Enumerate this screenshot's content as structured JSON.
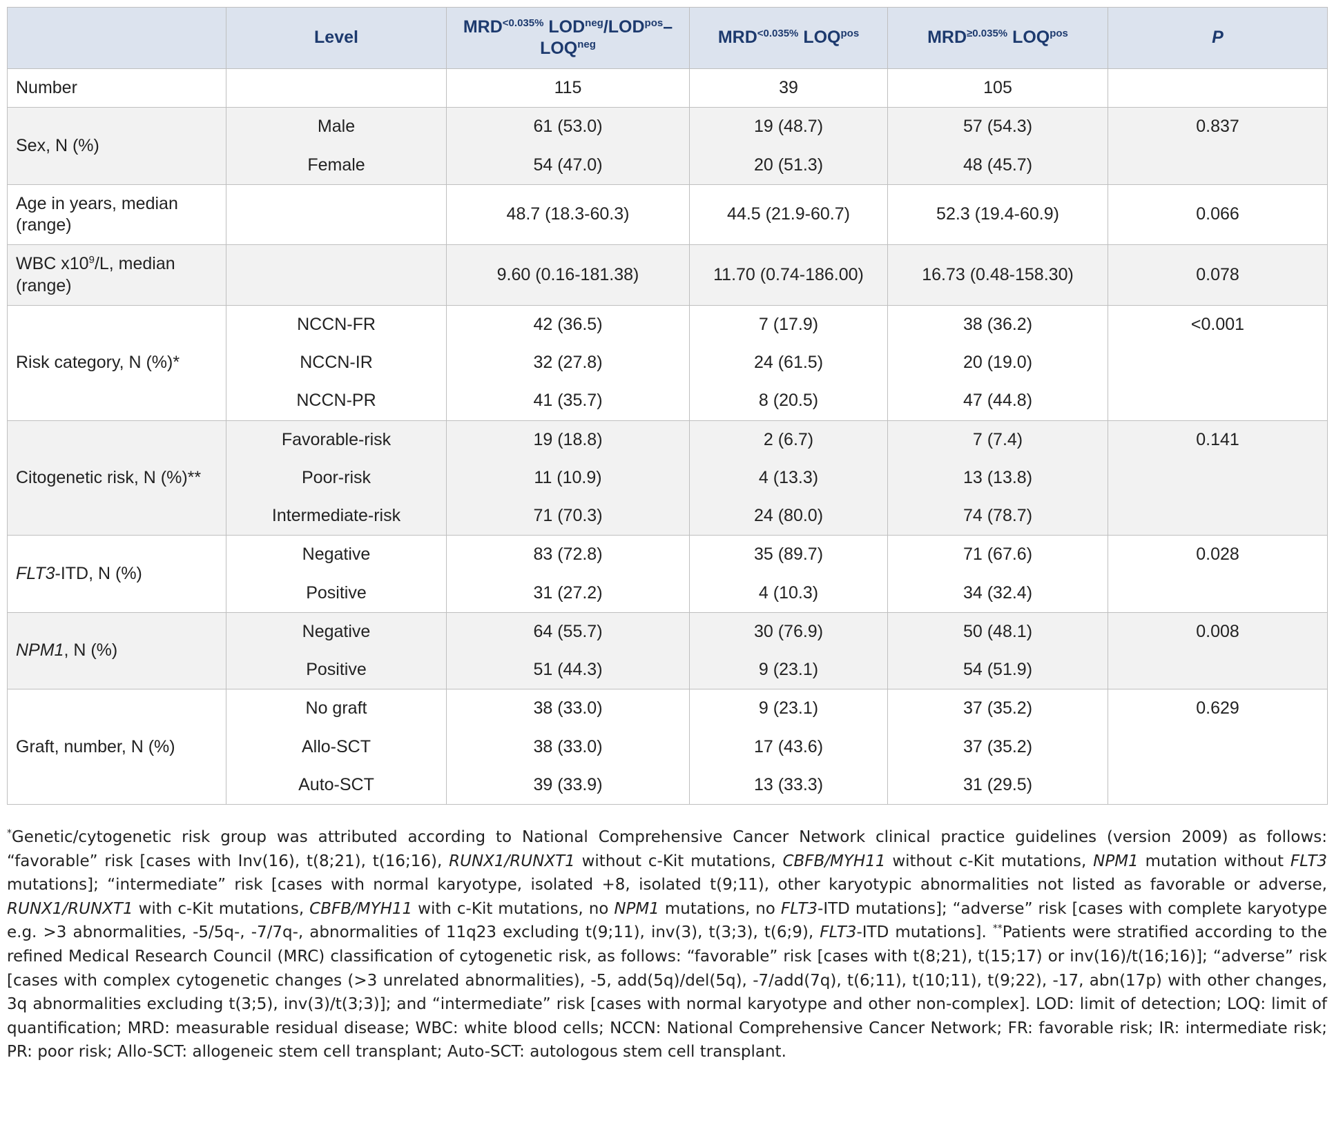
{
  "table": {
    "header": [
      "Level",
      [
        "MRD",
        {
          "text": "<0.035%",
          "style": "sup"
        },
        " LOD",
        {
          "text": "neg",
          "style": "sup"
        },
        "/LOD",
        {
          "text": "pos",
          "style": "sup"
        },
        "–LOQ",
        {
          "text": "neg",
          "style": "sup"
        }
      ],
      [
        "MRD",
        {
          "text": "<0.035%",
          "style": "sup"
        },
        " LOQ",
        {
          "text": "pos",
          "style": "sup"
        }
      ],
      [
        "MRD",
        {
          "text": "≥0.035%",
          "style": "sup"
        },
        " LOQ",
        {
          "text": "pos",
          "style": "sup"
        }
      ],
      [
        {
          "text": "P",
          "style": "italic"
        }
      ]
    ],
    "groups": [
      {
        "label": "Number",
        "rows": [
          {
            "values": [
              "115",
              "39",
              "105"
            ]
          }
        ]
      },
      {
        "label": "Sex, N (%)",
        "rows": [
          {
            "level": "Male",
            "values": [
              "61 (53.0)",
              "19 (48.7)",
              "57 (54.3)"
            ],
            "p": "0.837"
          },
          {
            "level": "Female",
            "values": [
              "54 (47.0)",
              "20 (51.3)",
              "48 (45.7)"
            ]
          }
        ]
      },
      {
        "label": "Age in years, median (range)",
        "rows": [
          {
            "values": [
              "48.7 (18.3-60.3)",
              "44.5 (21.9-60.7)",
              "52.3 (19.4-60.9)"
            ],
            "p": "0.066"
          }
        ]
      },
      {
        "label": [
          "WBC x10",
          {
            "text": "9",
            "style": "sup"
          },
          "/L, median (range)"
        ],
        "rows": [
          {
            "values": [
              "9.60 (0.16-181.38)",
              "11.70 (0.74-186.00)",
              "16.73 (0.48-158.30)"
            ],
            "p": "0.078"
          }
        ]
      },
      {
        "label": "Risk category, N (%)*",
        "rows": [
          {
            "level": "NCCN-FR",
            "values": [
              "42 (36.5)",
              "7 (17.9)",
              "38 (36.2)"
            ],
            "p": "<0.001"
          },
          {
            "level": "NCCN-IR",
            "values": [
              "32 (27.8)",
              "24 (61.5)",
              "20 (19.0)"
            ]
          },
          {
            "level": "NCCN-PR",
            "values": [
              "41 (35.7)",
              "8 (20.5)",
              "47 (44.8)"
            ]
          }
        ]
      },
      {
        "label": "Citogenetic risk, N (%)**",
        "rows": [
          {
            "level": "Favorable-risk",
            "values": [
              "19 (18.8)",
              "2 (6.7)",
              "7 (7.4)"
            ],
            "p": "0.141"
          },
          {
            "level": "Poor-risk",
            "values": [
              "11 (10.9)",
              "4 (13.3)",
              "13 (13.8)"
            ]
          },
          {
            "level": "Intermediate-risk",
            "values": [
              "71 (70.3)",
              "24 (80.0)",
              "74 (78.7)"
            ]
          }
        ]
      },
      {
        "label": [
          {
            "text": "FLT3",
            "style": "italic"
          },
          "-ITD, N (%)"
        ],
        "rows": [
          {
            "level": "Negative",
            "values": [
              "83 (72.8)",
              "35 (89.7)",
              "71 (67.6)"
            ],
            "p": "0.028"
          },
          {
            "level": "Positive",
            "values": [
              "31 (27.2)",
              "4 (10.3)",
              "34 (32.4)"
            ]
          }
        ]
      },
      {
        "label": [
          {
            "text": "NPM1",
            "style": "italic"
          },
          ", N (%)"
        ],
        "rows": [
          {
            "level": "Negative",
            "values": [
              "64 (55.7)",
              "30 (76.9)",
              "50 (48.1)"
            ],
            "p": "0.008"
          },
          {
            "level": "Positive",
            "values": [
              "51 (44.3)",
              "9 (23.1)",
              "54 (51.9)"
            ]
          }
        ]
      },
      {
        "label": "Graft, number, N (%)",
        "rows": [
          {
            "level": "No graft",
            "values": [
              "38 (33.0)",
              "9 (23.1)",
              "37 (35.2)"
            ],
            "p": "0.629"
          },
          {
            "level": "Allo-SCT",
            "values": [
              "38 (33.0)",
              "17 (43.6)",
              "37 (35.2)"
            ]
          },
          {
            "level": "Auto-SCT",
            "values": [
              "39 (33.9)",
              "13 (33.3)",
              "31 (29.5)"
            ]
          }
        ]
      }
    ]
  },
  "footnote": [
    {
      "text": "*",
      "style": "sup"
    },
    "Genetic/cytogenetic risk group was attributed according to National Comprehensive Cancer Network clinical practice guidelines (version 2009) as follows: “favorable” risk [cases with Inv(16), t(8;21), t(16;16), ",
    {
      "text": "RUNX1/RUNXT1",
      "style": "italic"
    },
    " without c-Kit mutations, ",
    {
      "text": "CBFB/MYH11",
      "style": "italic"
    },
    " without c-Kit mutations, ",
    {
      "text": "NPM1",
      "style": "italic"
    },
    " mutation without ",
    {
      "text": "FLT3",
      "style": "italic"
    },
    " mutations]; “intermediate” risk [cases with normal karyotype, isolated +8, isolated t(9;11), other karyotypic abnormalities not listed as favorable or adverse, ",
    {
      "text": "RUNX1/RUNXT1",
      "style": "italic"
    },
    " with c-Kit mutations, ",
    {
      "text": "CBFB/MYH11",
      "style": "italic"
    },
    " with c-Kit mutations, no ",
    {
      "text": "NPM1",
      "style": "italic"
    },
    " mutations, no ",
    {
      "text": "FLT3",
      "style": "italic"
    },
    "-ITD mutations]; “adverse” risk [cases with complete karyotype e.g. >3 abnormalities, -5/5q-, -7/7q-, abnormalities of 11q23 excluding t(9;11), inv(3), t(3;3), t(6;9), ",
    {
      "text": "FLT3",
      "style": "italic"
    },
    "-ITD mutations]. ",
    {
      "text": "**",
      "style": "sup"
    },
    "Patients were stratified according to the refined Medical Research Council (MRC) classification of cytogenetic risk, as follows: “favorable” risk [cases with t(8;21), t(15;17) or inv(16)/t(16;16)]; “adverse” risk [cases with complex cytogenetic changes (>3 unrelated abnormalities), -5, add(5q)/del(5q), -7/add(7q), t(6;11), t(10;11), t(9;22), -17, abn(17p) with other changes, 3q abnormalities excluding t(3;5), inv(3)/t(3;3)]; and “intermediate” risk [cases with normal karyotype and other non-complex]. LOD: limit of detection; LOQ: limit of quantification; MRD: measurable residual disease; WBC: white blood cells; NCCN: National Comprehensive Cancer Network; FR: favorable risk; IR: intermediate risk; PR: poor risk; Allo-SCT: allogeneic stem cell transplant; Auto-SCT: autologous stem cell transplant."
  ]
}
